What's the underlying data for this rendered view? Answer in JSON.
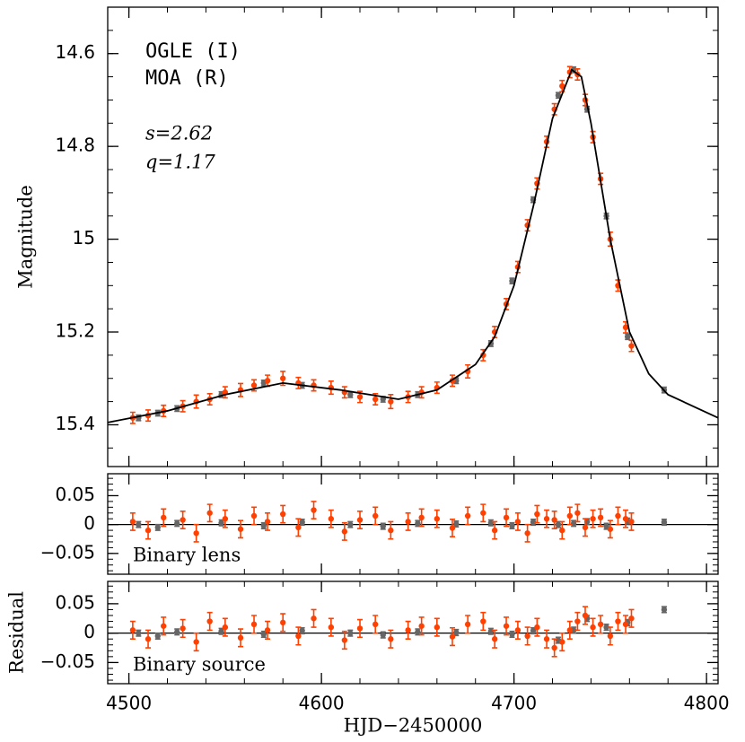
{
  "chart_data": [
    {
      "type": "scatter",
      "y_label": "Magnitude",
      "y_inverted": true,
      "legend": "upper left",
      "annotations": [
        "s=2.62",
        "q=1.17"
      ],
      "xlim": [
        4489,
        4806
      ],
      "xticks": [
        4500,
        4600,
        4700,
        4800
      ],
      "ylim": [
        14.5,
        15.49
      ],
      "yticks": [
        14.6,
        14.8,
        15,
        15.2,
        15.4
      ],
      "series": [
        {
          "name": "OGLE (I)",
          "color": "#666666",
          "x": [
            4505,
            4515,
            4525,
            4548,
            4570,
            4590,
            4615,
            4632,
            4650,
            4670,
            4688,
            4699,
            4710,
            4723,
            4731,
            4738,
            4748,
            4759,
            4778
          ],
          "values": [
            15.385,
            15.375,
            15.365,
            15.335,
            15.31,
            15.315,
            15.335,
            15.345,
            15.335,
            15.305,
            15.225,
            15.09,
            14.915,
            14.69,
            14.635,
            14.72,
            14.95,
            15.21,
            15.325
          ],
          "errors": [
            0.006,
            0.006,
            0.006,
            0.006,
            0.006,
            0.006,
            0.006,
            0.006,
            0.006,
            0.006,
            0.006,
            0.006,
            0.006,
            0.006,
            0.006,
            0.006,
            0.006,
            0.006,
            0.006
          ]
        },
        {
          "name": "MOA (R)",
          "color": "#ff4000",
          "x": [
            4502,
            4510,
            4518,
            4528,
            4535,
            4542,
            4550,
            4558,
            4565,
            4572,
            4580,
            4588,
            4596,
            4605,
            4612,
            4620,
            4628,
            4636,
            4645,
            4652,
            4660,
            4668,
            4676,
            4684,
            4690,
            4696,
            4702,
            4707,
            4712,
            4717,
            4721,
            4725,
            4729,
            4733,
            4737,
            4741,
            4745,
            4750,
            4754,
            4758,
            4761
          ],
          "values": [
            15.385,
            15.38,
            15.37,
            15.36,
            15.35,
            15.345,
            15.33,
            15.325,
            15.315,
            15.305,
            15.3,
            15.31,
            15.315,
            15.32,
            15.33,
            15.34,
            15.345,
            15.35,
            15.34,
            15.33,
            15.32,
            15.305,
            15.285,
            15.25,
            15.2,
            15.14,
            15.06,
            14.97,
            14.88,
            14.79,
            14.72,
            14.67,
            14.64,
            14.645,
            14.7,
            14.78,
            14.87,
            15.0,
            15.1,
            15.19,
            15.23
          ],
          "errors": [
            0.012,
            0.012,
            0.012,
            0.012,
            0.014,
            0.012,
            0.012,
            0.014,
            0.012,
            0.012,
            0.015,
            0.012,
            0.012,
            0.014,
            0.012,
            0.012,
            0.012,
            0.015,
            0.012,
            0.012,
            0.012,
            0.012,
            0.014,
            0.012,
            0.012,
            0.012,
            0.012,
            0.012,
            0.012,
            0.012,
            0.012,
            0.012,
            0.012,
            0.012,
            0.012,
            0.012,
            0.012,
            0.015,
            0.012,
            0.012,
            0.012
          ]
        },
        {
          "type": "line",
          "color": "#000000",
          "x": [
            4489,
            4520,
            4550,
            4580,
            4610,
            4640,
            4660,
            4680,
            4690,
            4700,
            4710,
            4720,
            4730,
            4735,
            4740,
            4750,
            4760,
            4770,
            4780,
            4806
          ],
          "values": [
            15.395,
            15.37,
            15.335,
            15.31,
            15.325,
            15.345,
            15.325,
            15.27,
            15.21,
            15.1,
            14.93,
            14.74,
            14.635,
            14.65,
            14.75,
            15.0,
            15.2,
            15.29,
            15.335,
            15.385
          ]
        }
      ]
    },
    {
      "type": "scatter",
      "annotations": [
        "Binary lens"
      ],
      "xlim": [
        4489,
        4806
      ],
      "xticks": [
        4500,
        4600,
        4700,
        4800
      ],
      "ylim": [
        -0.086,
        0.088
      ],
      "yticks": [
        {
          "value": -0.05,
          "label": "−0.05"
        },
        0,
        0.05
      ],
      "series": [
        {
          "color": "#666666",
          "x": [
            4505,
            4515,
            4525,
            4548,
            4570,
            4590,
            4615,
            4632,
            4650,
            4670,
            4688,
            4699,
            4710,
            4723,
            4731,
            4738,
            4748,
            4759,
            4778
          ],
          "values": [
            0.0,
            -0.005,
            0.002,
            0.003,
            -0.002,
            0.004,
            0.0,
            -0.003,
            0.002,
            0.001,
            0.003,
            -0.002,
            0.004,
            0.0,
            0.002,
            0.005,
            -0.003,
            0.006,
            0.004
          ],
          "errors": [
            0.005,
            0.005,
            0.005,
            0.005,
            0.005,
            0.005,
            0.005,
            0.005,
            0.005,
            0.005,
            0.005,
            0.005,
            0.005,
            0.005,
            0.005,
            0.005,
            0.005,
            0.005,
            0.005
          ]
        },
        {
          "color": "#ff4000",
          "x": [
            4502,
            4510,
            4518,
            4528,
            4535,
            4542,
            4550,
            4558,
            4565,
            4572,
            4580,
            4588,
            4596,
            4605,
            4612,
            4620,
            4628,
            4636,
            4645,
            4652,
            4660,
            4668,
            4676,
            4684,
            4690,
            4696,
            4702,
            4707,
            4712,
            4717,
            4721,
            4725,
            4729,
            4733,
            4737,
            4741,
            4745,
            4750,
            4754,
            4758,
            4761
          ],
          "values": [
            0.005,
            -0.01,
            0.012,
            0.008,
            -0.015,
            0.02,
            0.01,
            -0.008,
            0.015,
            0.005,
            0.018,
            -0.005,
            0.025,
            0.01,
            -0.012,
            0.008,
            0.015,
            -0.01,
            0.005,
            0.012,
            0.01,
            -0.006,
            0.015,
            0.02,
            -0.01,
            0.012,
            0.005,
            -0.015,
            0.018,
            0.01,
            0.008,
            -0.01,
            0.015,
            0.02,
            -0.005,
            0.01,
            0.012,
            -0.008,
            0.015,
            0.01,
            0.005
          ],
          "errors": [
            0.015,
            0.015,
            0.015,
            0.015,
            0.015,
            0.015,
            0.015,
            0.015,
            0.015,
            0.015,
            0.015,
            0.015,
            0.015,
            0.015,
            0.015,
            0.015,
            0.015,
            0.015,
            0.015,
            0.015,
            0.015,
            0.015,
            0.015,
            0.015,
            0.015,
            0.015,
            0.015,
            0.015,
            0.015,
            0.015,
            0.015,
            0.015,
            0.015,
            0.015,
            0.015,
            0.015,
            0.015,
            0.015,
            0.015,
            0.015,
            0.015
          ]
        }
      ]
    },
    {
      "type": "scatter",
      "annotations": [
        "Binary source"
      ],
      "y_label": "Residual",
      "x_label": "HJD−2450000",
      "xlim": [
        4489,
        4806
      ],
      "xticks": [
        4500,
        4600,
        4700,
        4800
      ],
      "ylim": [
        -0.086,
        0.088
      ],
      "yticks": [
        {
          "value": -0.05,
          "label": "−0.05"
        },
        0,
        0.05
      ],
      "series": [
        {
          "color": "#666666",
          "x": [
            4505,
            4515,
            4525,
            4548,
            4570,
            4590,
            4615,
            4632,
            4650,
            4670,
            4688,
            4699,
            4710,
            4723,
            4731,
            4738,
            4748,
            4759,
            4778
          ],
          "values": [
            0.0,
            -0.005,
            0.002,
            0.003,
            -0.002,
            0.004,
            0.0,
            -0.003,
            0.002,
            0.001,
            0.003,
            -0.002,
            0.004,
            -0.012,
            0.005,
            0.025,
            0.01,
            0.018,
            0.04
          ],
          "errors": [
            0.005,
            0.005,
            0.005,
            0.005,
            0.005,
            0.005,
            0.005,
            0.005,
            0.005,
            0.005,
            0.005,
            0.005,
            0.005,
            0.005,
            0.005,
            0.005,
            0.005,
            0.005,
            0.005
          ]
        },
        {
          "color": "#ff4000",
          "x": [
            4502,
            4510,
            4518,
            4528,
            4535,
            4542,
            4550,
            4558,
            4565,
            4572,
            4580,
            4588,
            4596,
            4605,
            4612,
            4620,
            4628,
            4636,
            4645,
            4652,
            4660,
            4668,
            4676,
            4684,
            4690,
            4696,
            4702,
            4707,
            4712,
            4717,
            4721,
            4725,
            4729,
            4733,
            4737,
            4741,
            4745,
            4750,
            4754,
            4758,
            4761
          ],
          "values": [
            0.005,
            -0.01,
            0.012,
            0.008,
            -0.015,
            0.02,
            0.01,
            -0.008,
            0.015,
            0.005,
            0.018,
            -0.005,
            0.025,
            0.01,
            -0.012,
            0.008,
            0.015,
            -0.01,
            0.005,
            0.012,
            0.01,
            -0.006,
            0.015,
            0.02,
            -0.01,
            0.012,
            0.005,
            -0.005,
            0.01,
            -0.01,
            -0.025,
            -0.015,
            0.005,
            0.02,
            0.03,
            0.01,
            0.015,
            -0.005,
            0.02,
            0.015,
            0.025
          ],
          "errors": [
            0.015,
            0.015,
            0.015,
            0.015,
            0.015,
            0.015,
            0.015,
            0.015,
            0.015,
            0.015,
            0.015,
            0.015,
            0.015,
            0.015,
            0.015,
            0.015,
            0.015,
            0.015,
            0.015,
            0.015,
            0.015,
            0.015,
            0.015,
            0.015,
            0.015,
            0.015,
            0.015,
            0.015,
            0.015,
            0.015,
            0.015,
            0.015,
            0.015,
            0.015,
            0.015,
            0.015,
            0.015,
            0.015,
            0.015,
            0.015,
            0.015
          ]
        }
      ]
    }
  ]
}
